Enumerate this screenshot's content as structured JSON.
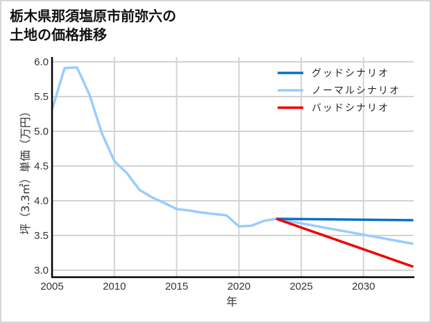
{
  "title_line1": "栃木県那須塩原市前弥六の",
  "title_line2": "土地の価格推移",
  "chart_data": {
    "type": "line",
    "title": "栃木県那須塩原市前弥六の土地の価格推移",
    "xlabel": "年",
    "ylabel": "坪（3.3㎡）単価（万円）",
    "xlim": [
      2005,
      2034
    ],
    "ylim": [
      2.9,
      6.0
    ],
    "xticks": [
      "2005",
      "2010",
      "2015",
      "2020",
      "2025",
      "2030"
    ],
    "yticks": [
      "3.0",
      "3.5",
      "4.0",
      "4.5",
      "5.0",
      "5.5",
      "6.0"
    ],
    "grid": true,
    "legend_position": "upper right",
    "series": [
      {
        "name": "グッドシナリオ",
        "color": "#0d6fc4",
        "x": [
          2023,
          2034
        ],
        "values": [
          3.74,
          3.72
        ]
      },
      {
        "name": "ノーマルシナリオ",
        "color": "#99ccff",
        "x": [
          2005,
          2006,
          2007,
          2008,
          2009,
          2010,
          2011,
          2012,
          2013,
          2014,
          2015,
          2016,
          2017,
          2018,
          2019,
          2020,
          2021,
          2022,
          2023,
          2034
        ],
        "values": [
          5.31,
          5.91,
          5.92,
          5.53,
          4.97,
          4.57,
          4.4,
          4.16,
          4.05,
          3.97,
          3.88,
          3.86,
          3.83,
          3.81,
          3.79,
          3.63,
          3.64,
          3.71,
          3.74,
          3.38
        ]
      },
      {
        "name": "バッドシナリオ",
        "color": "#ee0000",
        "x": [
          2023,
          2034
        ],
        "values": [
          3.74,
          3.05
        ]
      }
    ]
  }
}
